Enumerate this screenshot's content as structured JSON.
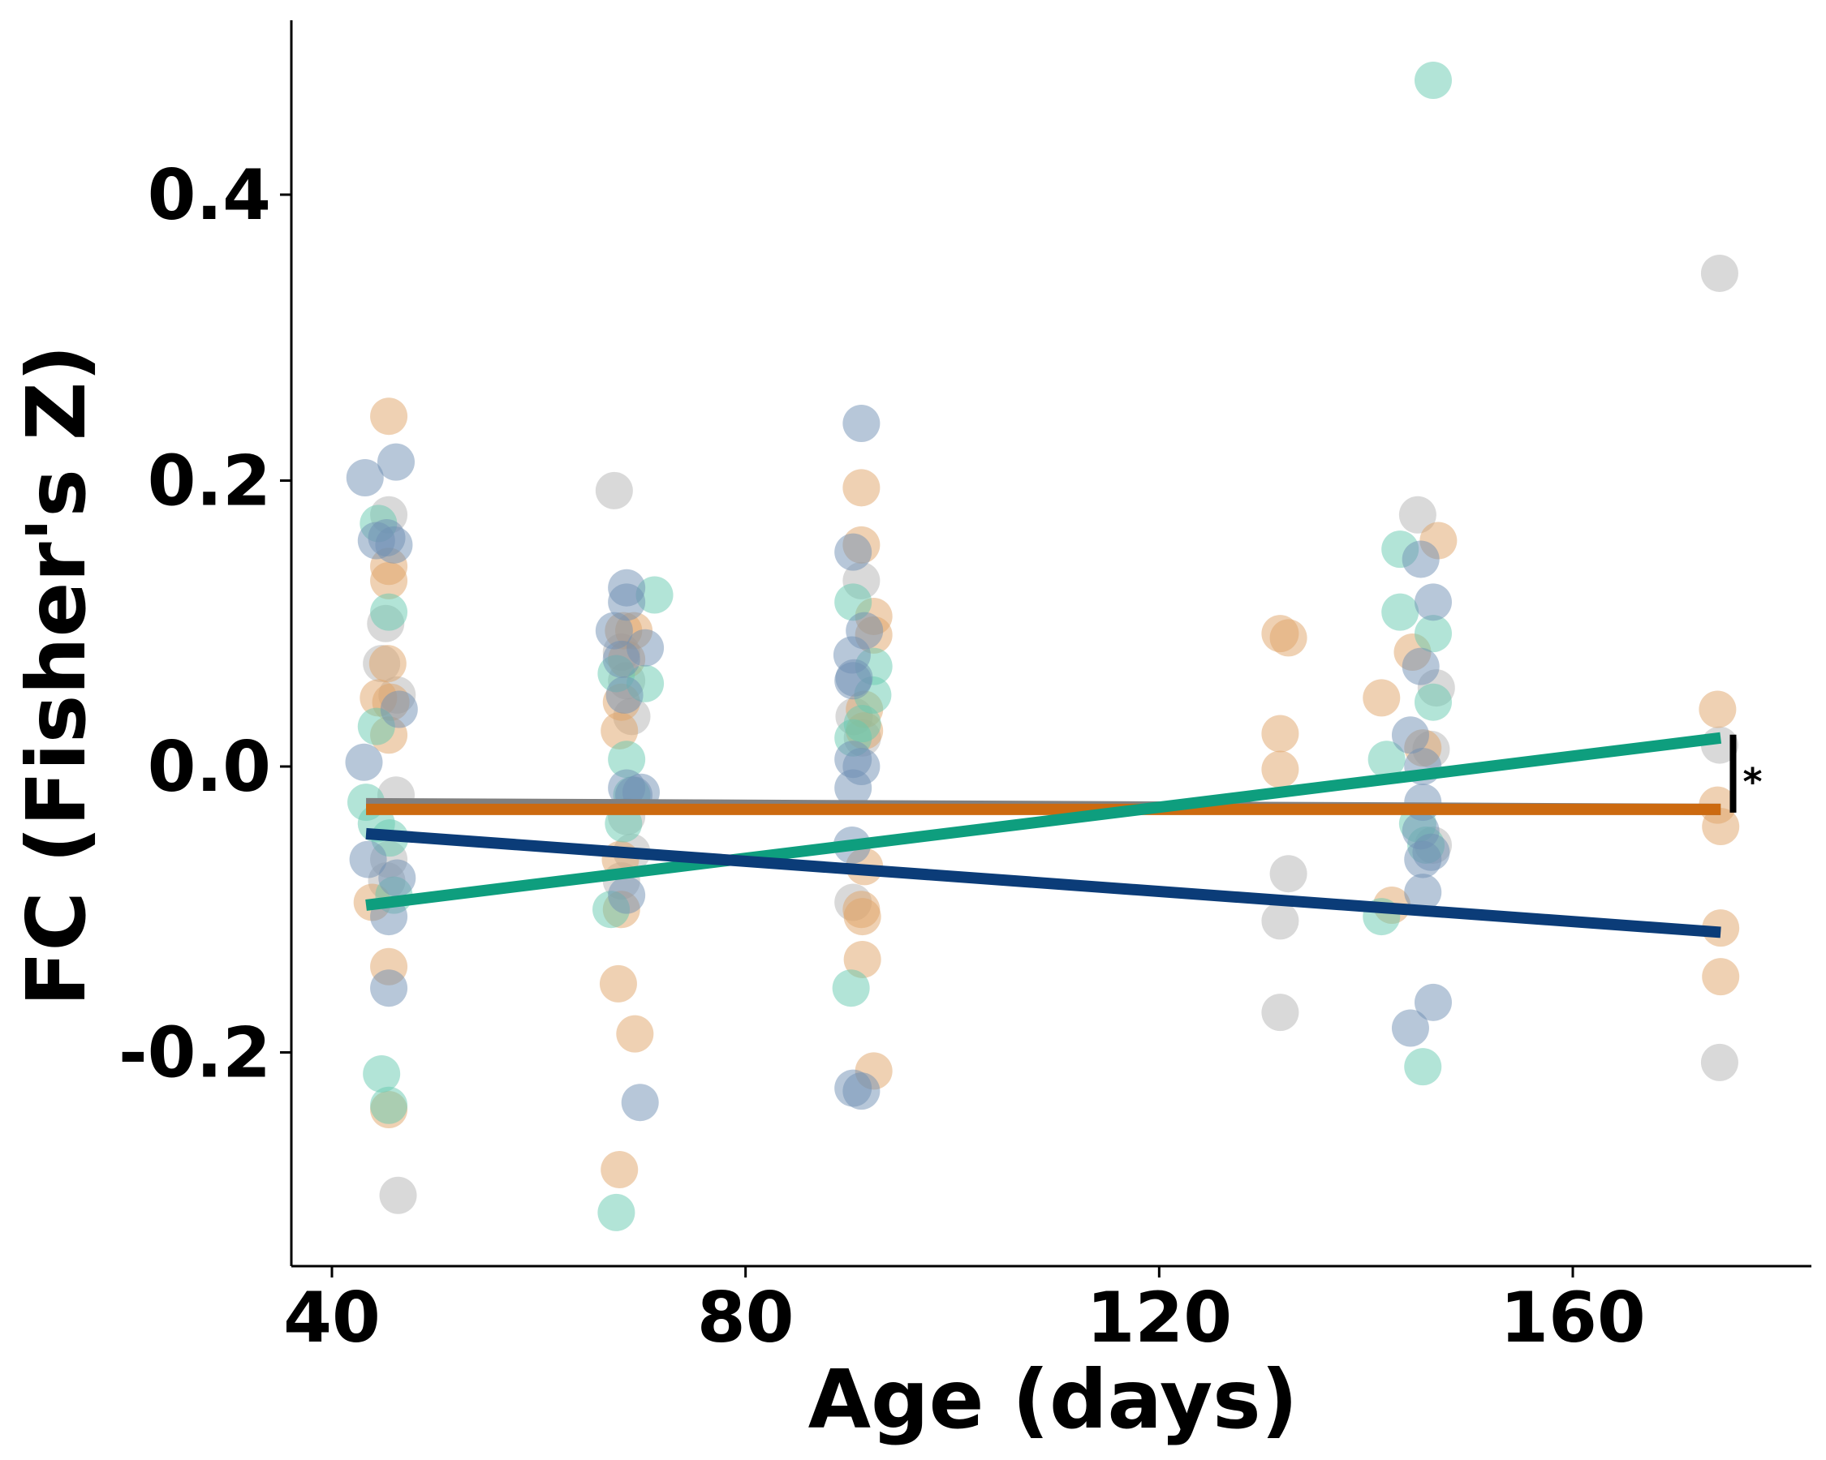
{
  "chart_data": {
    "type": "scatter",
    "title": "",
    "xlabel": "Age (days)",
    "ylabel": "FC (Fisher's Z)",
    "xlim": [
      35,
      180
    ],
    "ylim": [
      -0.35,
      0.52
    ],
    "x_ticks": [
      40,
      80,
      120,
      160
    ],
    "x_tick_labels": [
      "40",
      "80",
      "120",
      "160"
    ],
    "y_ticks": [
      -0.2,
      0.0,
      0.2,
      0.4
    ],
    "y_tick_labels": [
      "-0.2",
      "0.0",
      "0.2",
      "0.4"
    ],
    "grid": false,
    "legend": "none",
    "annotation": "*",
    "colors": {
      "grey": "#b3b3b3",
      "orange": "#e0a468",
      "teal": "#66c9b0",
      "blue": "#6f8fb3",
      "grey_line": "#808080",
      "orange_line": "#cc6a10",
      "teal_line": "#0e9e7e",
      "blue_line": "#0b3c78"
    },
    "series": [
      {
        "color_key": "grey",
        "points": [
          [
            45.5,
            0.176
          ],
          [
            44.8,
            0.072
          ],
          [
            45.2,
            0.1
          ],
          [
            46.3,
            0.05
          ],
          [
            46.2,
            -0.02
          ],
          [
            45.5,
            -0.065
          ],
          [
            45.3,
            -0.08
          ],
          [
            46.4,
            -0.3
          ],
          [
            67.3,
            0.193
          ],
          [
            68,
            0.08
          ],
          [
            68.5,
            0.06
          ],
          [
            69,
            0.035
          ],
          [
            68.5,
            -0.035
          ],
          [
            69,
            -0.06
          ],
          [
            68,
            -0.08
          ],
          [
            90.4,
            -0.095
          ],
          [
            91.2,
            0.13
          ],
          [
            90.5,
            0.035
          ],
          [
            91.3,
            0.02
          ],
          [
            131.7,
            -0.108
          ],
          [
            131.7,
            -0.172
          ],
          [
            132.5,
            -0.075
          ],
          [
            145,
            0.176
          ],
          [
            146.8,
            0.055
          ],
          [
            146.3,
            0.012
          ],
          [
            146.5,
            -0.055
          ],
          [
            174.2,
            0.345
          ],
          [
            174.2,
            0.015
          ],
          [
            174.2,
            -0.207
          ]
        ]
      },
      {
        "color_key": "orange",
        "points": [
          [
            45.5,
            0.245
          ],
          [
            45.5,
            0.14
          ],
          [
            45.5,
            0.13
          ],
          [
            45.4,
            0.072
          ],
          [
            44.5,
            0.048
          ],
          [
            45.7,
            0.045
          ],
          [
            45.5,
            0.022
          ],
          [
            43.9,
            -0.095
          ],
          [
            45.5,
            -0.14
          ],
          [
            45.5,
            -0.24
          ],
          [
            68.2,
            0.095
          ],
          [
            69.2,
            0.095
          ],
          [
            68.5,
            0.075
          ],
          [
            68,
            0.045
          ],
          [
            67.8,
            0.025
          ],
          [
            67.9,
            -0.065
          ],
          [
            68,
            -0.1
          ],
          [
            67.7,
            -0.152
          ],
          [
            69.3,
            -0.187
          ],
          [
            67.8,
            -0.282
          ],
          [
            91.2,
            0.195
          ],
          [
            91.2,
            0.155
          ],
          [
            92.4,
            0.105
          ],
          [
            92.4,
            0.092
          ],
          [
            91.5,
            0.04
          ],
          [
            91.5,
            0.025
          ],
          [
            91.5,
            -0.07
          ],
          [
            91.2,
            -0.1
          ],
          [
            91.3,
            -0.105
          ],
          [
            91.3,
            -0.135
          ],
          [
            92.4,
            -0.213
          ],
          [
            131.7,
            0.093
          ],
          [
            132.5,
            0.09
          ],
          [
            131.7,
            0.023
          ],
          [
            131.7,
            -0.002
          ],
          [
            141.5,
            0.048
          ],
          [
            142.5,
            -0.097
          ],
          [
            144.5,
            0.08
          ],
          [
            147,
            0.158
          ],
          [
            145.5,
            0.013
          ],
          [
            174,
            0.04
          ],
          [
            174,
            -0.027
          ],
          [
            174.3,
            -0.042
          ],
          [
            174.3,
            -0.113
          ],
          [
            174.3,
            -0.147
          ]
        ]
      },
      {
        "color_key": "teal",
        "points": [
          [
            44.5,
            0.17
          ],
          [
            45.5,
            0.108
          ],
          [
            44.3,
            0.028
          ],
          [
            43.3,
            -0.025
          ],
          [
            44.3,
            -0.04
          ],
          [
            45.6,
            -0.05
          ],
          [
            46,
            -0.09
          ],
          [
            44.8,
            -0.215
          ],
          [
            45.5,
            -0.237
          ],
          [
            146.5,
            0.48
          ],
          [
            71.2,
            0.12
          ],
          [
            67.5,
            0.065
          ],
          [
            70.3,
            0.058
          ],
          [
            68.5,
            0.005
          ],
          [
            69,
            -0.02
          ],
          [
            68.2,
            -0.04
          ],
          [
            67,
            -0.1
          ],
          [
            67.5,
            -0.312
          ],
          [
            90.4,
            0.115
          ],
          [
            92.4,
            0.07
          ],
          [
            92.3,
            0.05
          ],
          [
            90.4,
            0.02
          ],
          [
            91.3,
            0.03
          ],
          [
            90.2,
            -0.155
          ],
          [
            143.3,
            0.152
          ],
          [
            143.3,
            0.108
          ],
          [
            146.5,
            0.093
          ],
          [
            146.5,
            0.045
          ],
          [
            142,
            0.005
          ],
          [
            145,
            -0.04
          ],
          [
            145.8,
            -0.055
          ],
          [
            141.5,
            -0.105
          ],
          [
            145.5,
            -0.21
          ]
        ]
      },
      {
        "color_key": "blue",
        "points": [
          [
            43.2,
            0.202
          ],
          [
            46.2,
            0.213
          ],
          [
            45.3,
            0.16
          ],
          [
            44.3,
            0.158
          ],
          [
            46,
            0.155
          ],
          [
            46.5,
            0.04
          ],
          [
            43.1,
            0.003
          ],
          [
            43.5,
            -0.065
          ],
          [
            45.5,
            -0.105
          ],
          [
            45.5,
            -0.155
          ],
          [
            46.3,
            -0.078
          ],
          [
            67.3,
            0.095
          ],
          [
            68.5,
            0.125
          ],
          [
            68.5,
            0.115
          ],
          [
            70.3,
            0.083
          ],
          [
            68,
            0.075
          ],
          [
            68.3,
            0.05
          ],
          [
            68.5,
            -0.015
          ],
          [
            69.2,
            -0.02
          ],
          [
            69.9,
            -0.018
          ],
          [
            68.5,
            -0.09
          ],
          [
            69.8,
            -0.235
          ],
          [
            90.4,
            0.15
          ],
          [
            91.5,
            0.095
          ],
          [
            90.3,
            0.078
          ],
          [
            90.5,
            0.062
          ],
          [
            90.4,
            0.06
          ],
          [
            90.4,
            0.005
          ],
          [
            91.2,
            0.0
          ],
          [
            90.4,
            -0.015
          ],
          [
            90.3,
            -0.055
          ],
          [
            90.4,
            -0.225
          ],
          [
            91.2,
            -0.227
          ],
          [
            91.2,
            0.24
          ],
          [
            145.3,
            0.145
          ],
          [
            146.5,
            0.115
          ],
          [
            145.3,
            0.07
          ],
          [
            144.3,
            0.022
          ],
          [
            145.5,
            0.0
          ],
          [
            145.5,
            -0.025
          ],
          [
            145.3,
            -0.045
          ],
          [
            146.3,
            -0.06
          ],
          [
            145.5,
            -0.065
          ],
          [
            145.5,
            -0.088
          ],
          [
            146.5,
            -0.165
          ],
          [
            144.3,
            -0.183
          ]
        ]
      }
    ],
    "fit_lines": [
      {
        "color_key": "grey_line",
        "x": [
          43.3,
          174.3
        ],
        "y": [
          -0.026,
          -0.03
        ]
      },
      {
        "color_key": "orange_line",
        "x": [
          43.3,
          174.3
        ],
        "y": [
          -0.03,
          -0.03
        ]
      },
      {
        "color_key": "teal_line",
        "x": [
          43.3,
          174.3
        ],
        "y": [
          -0.097,
          0.02
        ]
      },
      {
        "color_key": "blue_line",
        "x": [
          43.3,
          174.3
        ],
        "y": [
          -0.047,
          -0.116
        ]
      }
    ],
    "significance_bar": {
      "x": 175.5,
      "y": [
        0.02,
        -0.03
      ]
    }
  }
}
